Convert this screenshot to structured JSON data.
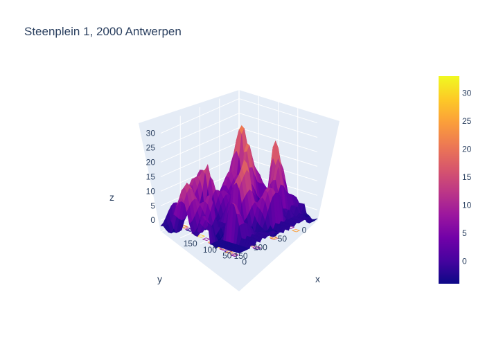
{
  "chart_data": {
    "type": "surface",
    "title": "Steenplein 1, 2000 Antwerpen",
    "x_axis": {
      "label": "x",
      "ticks": [
        "0",
        "50",
        "100",
        "150"
      ]
    },
    "y_axis": {
      "label": "y",
      "ticks": [
        "0",
        "50",
        "100",
        "150"
      ]
    },
    "z_axis": {
      "label": "z",
      "ticks": [
        "0",
        "5",
        "10",
        "15",
        "20",
        "25",
        "30"
      ],
      "range": [
        -4,
        33
      ]
    },
    "colorbar": {
      "ticks": [
        "0",
        "5",
        "10",
        "15",
        "20",
        "25",
        "30"
      ],
      "range": [
        -4,
        33
      ]
    },
    "colorscale": [
      "#0d0887",
      "#46039f",
      "#7201a8",
      "#9c179e",
      "#bd3786",
      "#d8576b",
      "#ed7953",
      "#fb9f3a",
      "#fdca26",
      "#f0f921"
    ],
    "contours_projected": true,
    "scene_background": "#e5ecf6"
  }
}
